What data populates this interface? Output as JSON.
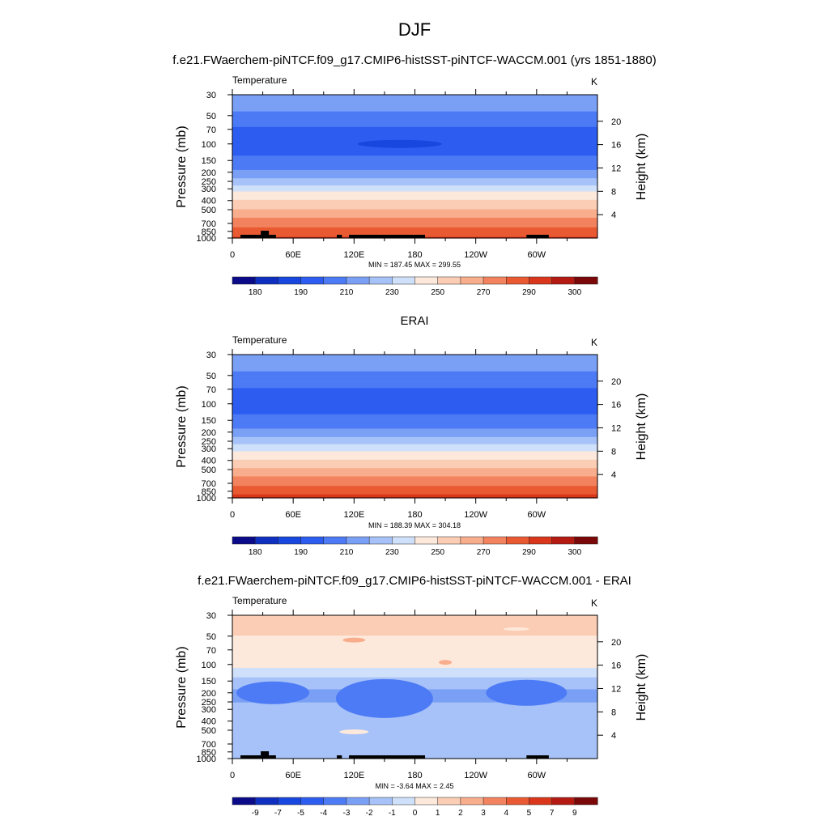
{
  "page": {
    "title": "DJF"
  },
  "colors": {
    "temperature_levels": [
      "#0b0b8a",
      "#0f2fc0",
      "#1747de",
      "#2d5df0",
      "#4d7af5",
      "#7aa0f6",
      "#a6c2f8",
      "#cfe0fa",
      "#fde9dc",
      "#fbcdb4",
      "#f8ad8d",
      "#f2835e",
      "#ea5a32",
      "#d9361b",
      "#b41a12",
      "#7a0808"
    ],
    "difference_levels": [
      "#0b0b8a",
      "#0f2fc0",
      "#1747de",
      "#2d5df0",
      "#4d7af5",
      "#7aa0f6",
      "#a6c2f8",
      "#cfe0fa",
      "#fde9dc",
      "#fbcdb4",
      "#f8ad8d",
      "#f2835e",
      "#ea5a32",
      "#d9361b",
      "#b41a12",
      "#7a0808"
    ]
  },
  "chart_data": [
    {
      "type": "heatmap",
      "title": "f.e21.FWaerchem-piNTCF.f09_g17.CMIP6-histSST-piNTCF-WACCM.001 (yrs 1851-1880)",
      "left_label": "Temperature",
      "units": "K",
      "ylabel": "Pressure (mb)",
      "y2label": "Height (km)",
      "x_ticks": [
        "0",
        "60E",
        "120E",
        "180",
        "120W",
        "60W"
      ],
      "x_tick_lon": [
        0,
        60,
        120,
        180,
        240,
        300
      ],
      "xlim": [
        0,
        360
      ],
      "y_ticks": [
        "30",
        "50",
        "70",
        "100",
        "150",
        "200",
        "250",
        "300",
        "400",
        "500",
        "700",
        "850",
        "1000"
      ],
      "y_tick_p": [
        30,
        50,
        70,
        100,
        150,
        200,
        250,
        300,
        400,
        500,
        700,
        850,
        1000
      ],
      "ylim": [
        30,
        1000
      ],
      "y_scale": "log",
      "y2_ticks": [
        "20",
        "16",
        "12",
        "8",
        "4"
      ],
      "y2_tick_km": [
        20,
        16,
        12,
        8,
        4
      ],
      "stats": "MIN = 187.45  MAX = 299.55",
      "min": 187.45,
      "max": 299.55,
      "levels": [
        175,
        180,
        185,
        190,
        200,
        210,
        220,
        230,
        240,
        250,
        260,
        270,
        280,
        290,
        295,
        300
      ],
      "colorbar_labels": [
        "180",
        "190",
        "210",
        "230",
        "250",
        "270",
        "290",
        "300"
      ],
      "profile": [
        [
          30,
          218
        ],
        [
          50,
          208
        ],
        [
          70,
          198
        ],
        [
          100,
          192
        ],
        [
          150,
          203
        ],
        [
          200,
          212
        ],
        [
          250,
          224
        ],
        [
          300,
          236
        ],
        [
          400,
          251
        ],
        [
          500,
          261
        ],
        [
          700,
          276
        ],
        [
          850,
          284
        ],
        [
          1000,
          291
        ]
      ],
      "cold_core": {
        "lon": 165,
        "p": 100,
        "value": 189
      },
      "terrain_mask": true
    },
    {
      "type": "heatmap",
      "title": "ERAI",
      "left_label": "Temperature",
      "units": "K",
      "ylabel": "Pressure (mb)",
      "y2label": "Height (km)",
      "x_ticks": [
        "0",
        "60E",
        "120E",
        "180",
        "120W",
        "60W"
      ],
      "x_tick_lon": [
        0,
        60,
        120,
        180,
        240,
        300
      ],
      "xlim": [
        0,
        360
      ],
      "y_ticks": [
        "30",
        "50",
        "70",
        "100",
        "150",
        "200",
        "250",
        "300",
        "400",
        "500",
        "700",
        "850",
        "1000"
      ],
      "y_tick_p": [
        30,
        50,
        70,
        100,
        150,
        200,
        250,
        300,
        400,
        500,
        700,
        850,
        1000
      ],
      "ylim": [
        30,
        1000
      ],
      "y_scale": "log",
      "y2_ticks": [
        "20",
        "16",
        "12",
        "8",
        "4"
      ],
      "y2_tick_km": [
        20,
        16,
        12,
        8,
        4
      ],
      "stats": "MIN = 188.39  MAX = 304.18",
      "min": 188.39,
      "max": 304.18,
      "levels": [
        175,
        180,
        185,
        190,
        200,
        210,
        220,
        230,
        240,
        250,
        260,
        270,
        280,
        290,
        295,
        300
      ],
      "colorbar_labels": [
        "180",
        "190",
        "210",
        "230",
        "250",
        "270",
        "290",
        "300"
      ],
      "profile": [
        [
          30,
          217
        ],
        [
          50,
          208
        ],
        [
          70,
          199
        ],
        [
          100,
          193
        ],
        [
          150,
          204
        ],
        [
          200,
          213
        ],
        [
          250,
          225
        ],
        [
          300,
          237
        ],
        [
          400,
          251
        ],
        [
          500,
          262
        ],
        [
          700,
          277
        ],
        [
          850,
          286
        ],
        [
          1000,
          294
        ]
      ],
      "cold_core": {
        "lon": 165,
        "p": 100,
        "value": 190
      },
      "terrain_mask": false
    },
    {
      "type": "heatmap",
      "title": "f.e21.FWaerchem-piNTCF.f09_g17.CMIP6-histSST-piNTCF-WACCM.001 - ERAI",
      "left_label": "Temperature",
      "units": "K",
      "ylabel": "Pressure (mb)",
      "y2label": "Height (km)",
      "x_ticks": [
        "0",
        "60E",
        "120E",
        "180",
        "120W",
        "60W"
      ],
      "x_tick_lon": [
        0,
        60,
        120,
        180,
        240,
        300
      ],
      "xlim": [
        0,
        360
      ],
      "y_ticks": [
        "30",
        "50",
        "70",
        "100",
        "150",
        "200",
        "250",
        "300",
        "400",
        "500",
        "700",
        "850",
        "1000"
      ],
      "y_tick_p": [
        30,
        50,
        70,
        100,
        150,
        200,
        250,
        300,
        400,
        500,
        700,
        850,
        1000
      ],
      "ylim": [
        30,
        1000
      ],
      "y_scale": "log",
      "y2_ticks": [
        "20",
        "16",
        "12",
        "8",
        "4"
      ],
      "y2_tick_km": [
        20,
        16,
        12,
        8,
        4
      ],
      "stats": "MIN =  -3.64  MAX =   2.45",
      "min": -3.64,
      "max": 2.45,
      "levels": [
        -11,
        -9,
        -7,
        -5,
        -4,
        -3,
        -2,
        -1,
        0,
        1,
        2,
        3,
        4,
        5,
        7,
        9
      ],
      "colorbar_labels": [
        "-9",
        "-7",
        "-5",
        "-4",
        "-3",
        "-2",
        "-1",
        "0",
        "1",
        "2",
        "3",
        "4",
        "5",
        "7",
        "9"
      ],
      "profile": [
        [
          30,
          1.2
        ],
        [
          50,
          1.0
        ],
        [
          70,
          0.9
        ],
        [
          100,
          0.3
        ],
        [
          150,
          -1.4
        ],
        [
          200,
          -2.3
        ],
        [
          250,
          -2.0
        ],
        [
          300,
          -1.6
        ],
        [
          400,
          -1.7
        ],
        [
          500,
          -1.2
        ],
        [
          700,
          -1.6
        ],
        [
          850,
          -1.8
        ],
        [
          1000,
          -1.2
        ]
      ],
      "terrain_mask": true
    }
  ]
}
